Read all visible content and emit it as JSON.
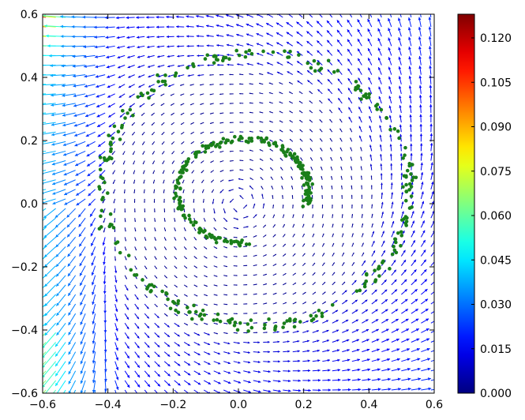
{
  "chart_data": {
    "type": "quiver+scatter",
    "title": "",
    "xlabel": "",
    "ylabel": "",
    "xlim": [
      -0.6,
      0.6
    ],
    "ylim": [
      -0.6,
      0.6
    ],
    "x_ticks": [
      "-0.6",
      "-0.4",
      "-0.2",
      "0.0",
      "0.2",
      "0.4",
      "0.6"
    ],
    "y_ticks": [
      "-0.6",
      "-0.4",
      "-0.2",
      "0.0",
      "0.2",
      "0.4",
      "0.6"
    ],
    "x_tick_values": [
      -0.6,
      -0.4,
      -0.2,
      0.0,
      0.2,
      0.4,
      0.6
    ],
    "y_tick_values": [
      -0.6,
      -0.4,
      -0.2,
      0.0,
      0.2,
      0.4,
      0.6
    ],
    "grid": false,
    "quiver": {
      "description": "vector field on a regular 40x40 grid, colored by magnitude (jet colormap)",
      "grid_n": 40,
      "colormap": "jet"
    },
    "scatter": {
      "color": "#1a7f1a",
      "description": "two concentric noisy spirals/rings of points",
      "outer_ring": {
        "center": [
          0.055,
          0.045
        ],
        "radius_x": 0.47,
        "radius_y": 0.43
      },
      "inner_ring": {
        "center": [
          0.05,
          0.04
        ],
        "radius": 0.19,
        "start_angle_deg": 270,
        "end_angle_deg": -20
      }
    },
    "colorbar": {
      "min": 0.0,
      "max": 0.128,
      "ticks": [
        "0.000",
        "0.015",
        "0.030",
        "0.045",
        "0.060",
        "0.075",
        "0.090",
        "0.105",
        "0.120"
      ],
      "tick_values": [
        0.0,
        0.015,
        0.03,
        0.045,
        0.06,
        0.075,
        0.09,
        0.105,
        0.12
      ]
    }
  }
}
